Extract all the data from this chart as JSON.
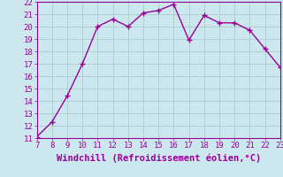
{
  "x": [
    7,
    8,
    9,
    10,
    11,
    12,
    13,
    14,
    15,
    16,
    17,
    18,
    19,
    20,
    21,
    22,
    23
  ],
  "y": [
    11.1,
    12.3,
    14.4,
    17.0,
    20.0,
    20.6,
    20.0,
    21.1,
    21.3,
    21.8,
    18.9,
    20.9,
    20.3,
    20.3,
    19.7,
    18.2,
    16.7
  ],
  "line_color": "#990099",
  "marker_color": "#990099",
  "bg_color": "#cce8ee",
  "grid_color": "#aacccc",
  "xlabel": "Windchill (Refroidissement éolien,°C)",
  "xlabel_color": "#990099",
  "xlim": [
    7,
    23
  ],
  "ylim": [
    11,
    22
  ],
  "yticks": [
    11,
    12,
    13,
    14,
    15,
    16,
    17,
    18,
    19,
    20,
    21,
    22
  ],
  "xticks": [
    7,
    8,
    9,
    10,
    11,
    12,
    13,
    14,
    15,
    16,
    17,
    18,
    19,
    20,
    21,
    22,
    23
  ],
  "tick_color": "#990099",
  "tick_fontsize": 6.5,
  "xlabel_fontsize": 7.5,
  "line_width": 1.0,
  "marker_size": 2.5
}
